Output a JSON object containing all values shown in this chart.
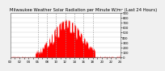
{
  "title": "Milwaukee Weather Solar Radiation per Minute W/m² (Last 24 Hours)",
  "title_fontsize": 3.8,
  "background_color": "#f0f0f0",
  "plot_bg_color": "#ffffff",
  "bar_color": "#ff0000",
  "grid_color": "#999999",
  "tick_fontsize": 2.8,
  "ylim": [
    0,
    900
  ],
  "yticks": [
    0,
    100,
    200,
    300,
    400,
    500,
    600,
    700,
    800,
    900
  ],
  "num_points": 1440,
  "dashed_vline_positions": [
    360,
    480,
    600,
    720,
    840,
    960,
    1080
  ]
}
